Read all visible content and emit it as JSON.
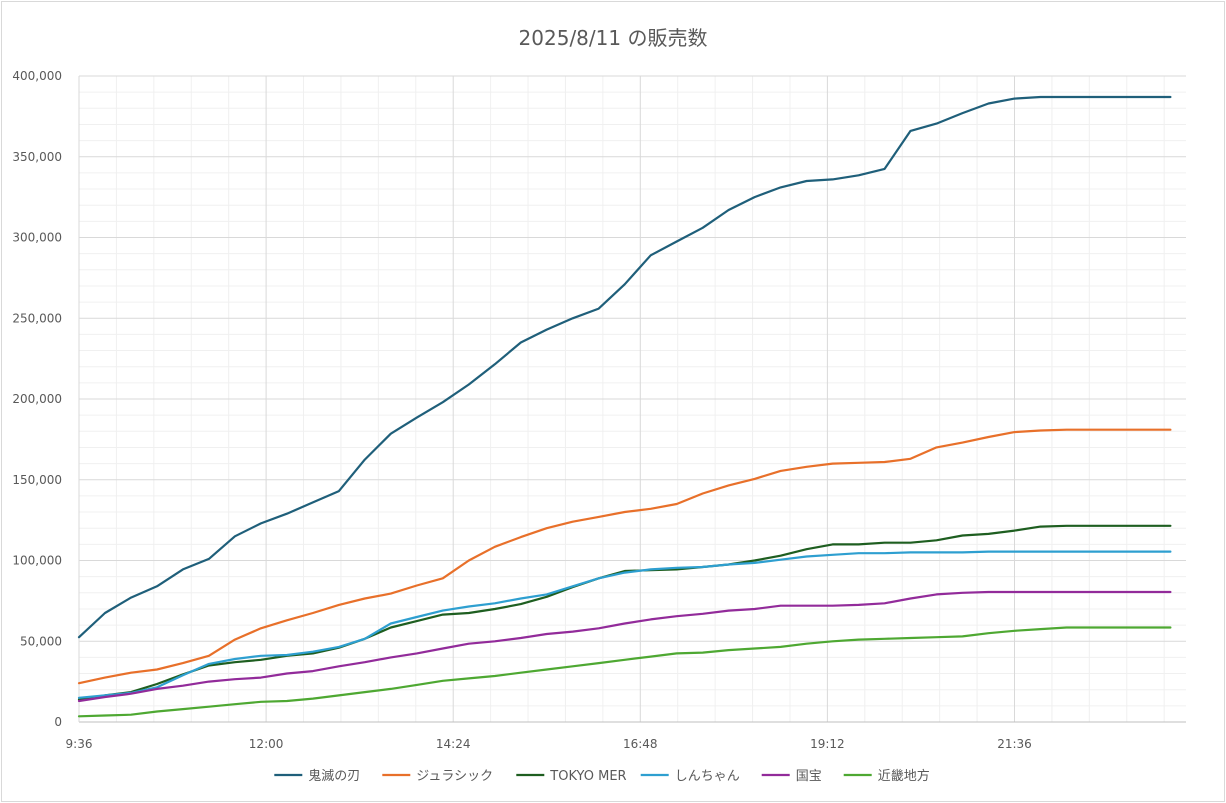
{
  "chart_data": {
    "type": "line",
    "title": "2025/8/11 の販売数",
    "xlabel": "",
    "ylabel": "",
    "ylim": [
      0,
      400000
    ],
    "xlim": [
      "9:36",
      "23:48"
    ],
    "ytick_labels": [
      "0",
      "50,000",
      "100,000",
      "150,000",
      "200,000",
      "250,000",
      "300,000",
      "350,000",
      "400,000"
    ],
    "xtick_labels": [
      "9:36",
      "12:00",
      "14:24",
      "16:48",
      "19:12",
      "21:36"
    ],
    "x_interval_minutes": 20,
    "grid": true,
    "legend_position": "bottom",
    "series": [
      {
        "name": "鬼滅の刃",
        "color": "#1f5f7a",
        "values": [
          52500,
          67500,
          77000,
          84000,
          94500,
          101000,
          115000,
          123000,
          129000,
          136000,
          143000,
          162500,
          178500,
          188500,
          198000,
          209000,
          221500,
          235000,
          243000,
          250000,
          256000,
          271000,
          289000,
          297500,
          306000,
          317000,
          325000,
          331000,
          335000,
          336000,
          338500,
          342500,
          366000,
          370500,
          377000,
          383000,
          386000,
          387000,
          387000,
          387000,
          387000,
          387000,
          387000
        ]
      },
      {
        "name": "ジュラシック",
        "color": "#e8702a",
        "values": [
          24000,
          27500,
          30500,
          32500,
          36500,
          41000,
          51000,
          58000,
          63000,
          67500,
          72500,
          76500,
          79500,
          84500,
          89000,
          100000,
          108500,
          114500,
          120000,
          124000,
          127000,
          130000,
          132000,
          135000,
          141500,
          146500,
          150500,
          155500,
          158000,
          160000,
          160500,
          161000,
          163000,
          170000,
          173000,
          176500,
          179500,
          180500,
          181000,
          181000,
          181000,
          181000,
          181000
        ]
      },
      {
        "name": "TOKYO MER",
        "color": "#1e5e20",
        "values": [
          14000,
          16500,
          18500,
          23500,
          29500,
          35000,
          37000,
          38500,
          41000,
          42500,
          46000,
          51500,
          58500,
          62500,
          66500,
          67500,
          70000,
          73000,
          77500,
          83500,
          89000,
          93500,
          94000,
          94500,
          96000,
          97500,
          100000,
          103000,
          107000,
          110000,
          110000,
          111000,
          111000,
          112500,
          115500,
          116500,
          118500,
          121000,
          121500,
          121500,
          121500,
          121500,
          121500
        ]
      },
      {
        "name": "しんちゃん",
        "color": "#2e9fd0",
        "values": [
          15000,
          16500,
          18000,
          21500,
          29000,
          36000,
          39000,
          41000,
          41500,
          43500,
          46500,
          51500,
          61000,
          65000,
          69000,
          71500,
          73500,
          76500,
          79000,
          84000,
          89000,
          92500,
          94500,
          95500,
          96000,
          97500,
          98500,
          100500,
          102500,
          103500,
          104500,
          104500,
          105000,
          105000,
          105000,
          105500,
          105500,
          105500,
          105500,
          105500,
          105500,
          105500,
          105500
        ]
      },
      {
        "name": "国宝",
        "color": "#922b9a",
        "values": [
          13000,
          15500,
          17500,
          20500,
          22500,
          25000,
          26500,
          27500,
          30000,
          31500,
          34500,
          37000,
          40000,
          42500,
          45500,
          48500,
          50000,
          52000,
          54500,
          56000,
          58000,
          61000,
          63500,
          65500,
          67000,
          69000,
          70000,
          72000,
          72000,
          72000,
          72500,
          73500,
          76500,
          79000,
          80000,
          80500,
          80500,
          80500,
          80500,
          80500,
          80500,
          80500,
          80500
        ]
      },
      {
        "name": "近畿地方",
        "color": "#4ea832",
        "values": [
          3500,
          4000,
          4500,
          6500,
          8000,
          9500,
          11000,
          12500,
          13000,
          14500,
          16500,
          18500,
          20500,
          23000,
          25500,
          27000,
          28500,
          30500,
          32500,
          34500,
          36500,
          38500,
          40500,
          42500,
          43000,
          44500,
          45500,
          46500,
          48500,
          50000,
          51000,
          51500,
          52000,
          52500,
          53000,
          55000,
          56500,
          57500,
          58500,
          58500,
          58500,
          58500,
          58500
        ]
      }
    ]
  }
}
